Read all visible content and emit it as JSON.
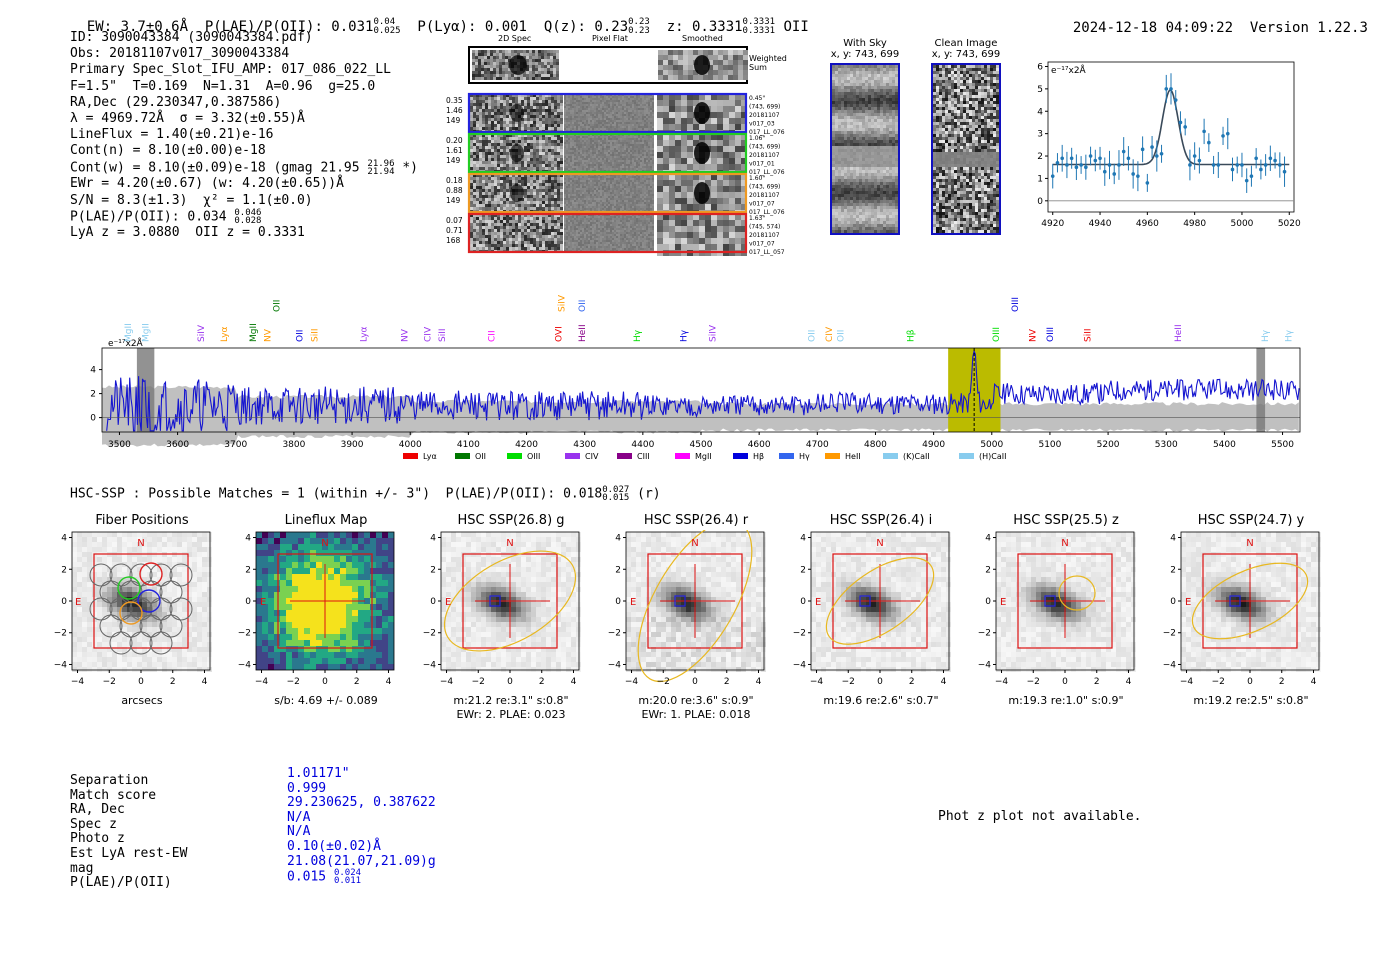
{
  "header": {
    "ew": "EW: 3.7±0.6Å",
    "plae_poii": "P(LAE)/P(OII): 0.031",
    "plae_poii_hi": "0.04",
    "plae_poii_lo": "0.025",
    "plya": "P(Lyα): 0.001",
    "qz": "Q(z): 0.23",
    "qz_hi": "0.23",
    "qz_lo": "0.23",
    "z": "z: 0.3331",
    "z_hi": "0.3331",
    "z_lo": "0.3331",
    "line": "OII",
    "timestamp": "2024-12-18 04:09:22",
    "version": "Version 1.22.3"
  },
  "info": {
    "id": "ID: 3090043384 (3090043384.pdf)",
    "obs": "Obs: 20181107v017_3090043384",
    "primary": "Primary Spec_Slot_IFU_AMP: 017_086_022_LL",
    "params": "F=1.5\"  T=0.169  N=1.31  A=0.96  g=25.0",
    "radec": "RA,Dec (29.230347,0.387586)",
    "lambda_sigma": "λ = 4969.72Å  σ = 3.32(±0.55)Å",
    "lineflux": "LineFlux = 1.40(±0.21)e-16",
    "contn": "Cont(n) = 8.10(±0.00)e-18",
    "contw": "Cont(w) = 8.10(±0.09)e-18 (gmag 21.95",
    "contw_hi": "21.96",
    "contw_lo": "21.94",
    "contw_end": "*)",
    "ewr": "EWr = 4.20(±0.67) (w: 4.20(±0.65))Å",
    "sn": "S/N = 8.3(±1.3)  χ² = 1.1(±0.0)",
    "plae": "P(LAE)/P(OII): 0.034",
    "plae_hi": "0.046",
    "plae_lo": "0.028",
    "lyaz": "LyA z = 3.0880  OII z = 0.3331"
  },
  "spec2d": {
    "col_headers": [
      "2D Spec",
      "Pixel Flat",
      "Smoothed"
    ],
    "weighted_sum": "Weighted Sum",
    "rows": [
      {
        "left": [
          "0.35",
          "1.46",
          "149"
        ],
        "right": [
          "0.45\"",
          "(743, 699)",
          "20181107",
          "v017_03",
          "017_LL_076"
        ],
        "color": "#2222dd"
      },
      {
        "left": [
          "0.20",
          "1.61",
          "149"
        ],
        "right": [
          "1.06\"",
          "(743, 699)",
          "20181107",
          "v017_01",
          "017_LL_076"
        ],
        "color": "#22cc22"
      },
      {
        "left": [
          "0.18",
          "0.88",
          "149"
        ],
        "right": [
          "1.60\"",
          "(743, 699)",
          "20181107",
          "v017_07",
          "017_LL_076"
        ],
        "color": "#ee9922"
      },
      {
        "left": [
          "0.07",
          "0.71",
          "168"
        ],
        "right": [
          "1.63\"",
          "(745, 574)",
          "20181107",
          "v017_07",
          "017_LL_057"
        ],
        "color": "#dd2222"
      }
    ]
  },
  "sky": {
    "with_sky_title": "With Sky",
    "with_sky_coords": "x, y: 743, 699",
    "clean_title": "Clean Image",
    "clean_coords": "x, y: 743, 699"
  },
  "zoom_plot": {
    "ylabel": "e⁻¹⁷x2Å",
    "xticks": [
      "4920",
      "4940",
      "4960",
      "4980",
      "5000",
      "5020"
    ],
    "yticks": [
      "0",
      "1",
      "2",
      "3",
      "4",
      "5",
      "6"
    ]
  },
  "chart_data": [
    {
      "type": "scatter",
      "title": "",
      "xlabel": "",
      "ylabel": "e⁻¹⁷x2Å",
      "xlim": [
        4918,
        5022
      ],
      "ylim": [
        -0.5,
        6.2
      ],
      "x": [
        4920,
        4922,
        4924,
        4926,
        4928,
        4930,
        4932,
        4934,
        4936,
        4938,
        4940,
        4942,
        4944,
        4946,
        4948,
        4950,
        4952,
        4954,
        4956,
        4958,
        4960,
        4962,
        4964,
        4966,
        4968,
        4970,
        4972,
        4974,
        4976,
        4978,
        4980,
        4982,
        4984,
        4986,
        4988,
        4990,
        4992,
        4994,
        4996,
        4998,
        5000,
        5002,
        5004,
        5006,
        5008,
        5010,
        5012,
        5014,
        5016,
        5018
      ],
      "y": [
        1.1,
        1.7,
        1.9,
        1.6,
        1.9,
        1.5,
        1.6,
        1.5,
        2.0,
        1.8,
        1.9,
        1.3,
        1.6,
        1.2,
        1.6,
        2.2,
        1.9,
        1.2,
        1.1,
        2.3,
        0.8,
        2.4,
        2.0,
        2.1,
        5.0,
        5.0,
        4.5,
        3.5,
        3.3,
        1.6,
        2.0,
        1.8,
        3.1,
        2.6,
        1.6,
        1.6,
        2.9,
        3.0,
        1.4,
        1.6,
        1.6,
        0.9,
        1.1,
        1.9,
        1.4,
        1.6,
        1.9,
        1.8,
        1.6,
        1.3
      ],
      "fit": {
        "continuum": 1.62,
        "peak": 4.95,
        "center": 4969.7,
        "sigma": 3.32
      }
    },
    {
      "type": "line",
      "title": "",
      "xlabel": "",
      "ylabel": "e⁻¹⁷x2Å",
      "xlim": [
        3470,
        5530
      ],
      "ylim": [
        -1.2,
        5.8
      ],
      "xticks": [
        3500,
        3600,
        3700,
        3800,
        3900,
        4000,
        4100,
        4200,
        4300,
        4400,
        4500,
        4600,
        4700,
        4800,
        4900,
        5000,
        5100,
        5200,
        5300,
        5400,
        5500
      ],
      "yticks": [
        0,
        2,
        4
      ],
      "highlight_range": [
        4925,
        5015
      ],
      "line_center": 4969.7,
      "masked": [
        [
          3530,
          3560
        ],
        [
          5455,
          5470
        ]
      ],
      "legend": [
        "Lyα",
        "OII",
        "OIII",
        "CIV",
        "CIII",
        "MgII",
        "Hβ",
        "Hγ",
        "HeII",
        "(K)CaII",
        "(H)CaII"
      ],
      "legend_colors": [
        "#ee0000",
        "#007700",
        "#00dd00",
        "#9933ee",
        "#880088",
        "#ff00ff",
        "#0000dd",
        "#3366ee",
        "#ff9900",
        "#88ccee",
        "#88ccee"
      ]
    }
  ],
  "line_labels": [
    {
      "name": "MgII",
      "w": 3515,
      "color": "#88ccee",
      "row": 2
    },
    {
      "name": "MgII",
      "w": 3545,
      "color": "#88ccee",
      "row": 2
    },
    {
      "name": "SiIV",
      "w": 3640,
      "color": "#9933ee",
      "row": 1
    },
    {
      "name": "Lyα",
      "w": 3680,
      "color": "#ff9900",
      "row": 1
    },
    {
      "name": "MgII",
      "w": 3730,
      "color": "#007700",
      "row": 1
    },
    {
      "name": "NV",
      "w": 3755,
      "color": "#ff9900",
      "row": 1
    },
    {
      "name": "OII",
      "w": 3770,
      "color": "#007700",
      "row": 0
    },
    {
      "name": "OII",
      "w": 3810,
      "color": "#0000dd",
      "row": 1
    },
    {
      "name": "SiII",
      "w": 3835,
      "color": "#ff9900",
      "row": 1
    },
    {
      "name": "Lyα",
      "w": 3920,
      "color": "#9933ee",
      "row": 1
    },
    {
      "name": "NV",
      "w": 3990,
      "color": "#9933ee",
      "row": 1
    },
    {
      "name": "CIV",
      "w": 4030,
      "color": "#9933ee",
      "row": 1
    },
    {
      "name": "SiII",
      "w": 4055,
      "color": "#9933ee",
      "row": 1
    },
    {
      "name": "CII",
      "w": 4140,
      "color": "#ff00ff",
      "row": 1
    },
    {
      "name": "SiIV",
      "w": 4260,
      "color": "#ff9900",
      "row": 0
    },
    {
      "name": "OVI",
      "w": 4255,
      "color": "#ee0000",
      "row": 1
    },
    {
      "name": "OII",
      "w": 4295,
      "color": "#3366ee",
      "row": 0
    },
    {
      "name": "HeII",
      "w": 4295,
      "color": "#880088",
      "row": 1
    },
    {
      "name": "Hγ",
      "w": 4390,
      "color": "#00dd00",
      "row": 1
    },
    {
      "name": "Hγ",
      "w": 4470,
      "color": "#0000dd",
      "row": 1
    },
    {
      "name": "SiIV",
      "w": 4520,
      "color": "#9933ee",
      "row": 1
    },
    {
      "name": "OII",
      "w": 4690,
      "color": "#88ccee",
      "row": 1
    },
    {
      "name": "CIV",
      "w": 4720,
      "color": "#ff9900",
      "row": 1
    },
    {
      "name": "OII",
      "w": 4740,
      "color": "#88ccee",
      "row": 1
    },
    {
      "name": "Hβ",
      "w": 4860,
      "color": "#00dd00",
      "row": 1
    },
    {
      "name": "OIII",
      "w": 5007,
      "color": "#00dd00",
      "row": 1
    },
    {
      "name": "OIII",
      "w": 5040,
      "color": "#0000dd",
      "row": 0
    },
    {
      "name": "NV",
      "w": 5070,
      "color": "#ee0000",
      "row": 1
    },
    {
      "name": "OIII",
      "w": 5100,
      "color": "#0000dd",
      "row": 1
    },
    {
      "name": "SiII",
      "w": 5165,
      "color": "#ee0000",
      "row": 1
    },
    {
      "name": "HeII",
      "w": 5320,
      "color": "#9933ee",
      "row": 1
    },
    {
      "name": "Hγ",
      "w": 5470,
      "color": "#88ccee",
      "row": 2
    },
    {
      "name": "Hγ",
      "w": 5510,
      "color": "#88ccee",
      "row": 2
    }
  ],
  "hsc": {
    "summary": "HSC-SSP : Possible Matches = 1 (within +/- 3\")  P(LAE)/P(OII): 0.018",
    "summary_hi": "0.027",
    "summary_lo": "0.015",
    "summary_end": "(r)",
    "tiles": [
      {
        "title": "Fiber Positions",
        "cap1": "arcsecs",
        "cap2": "",
        "kind": "fiber"
      },
      {
        "title": "Lineflux Map",
        "cap1": "s/b: 4.69 +/- 0.089",
        "cap2": "",
        "kind": "flux"
      },
      {
        "title": "HSC SSP(26.8) g",
        "cap1": "m:21.2  re:3.1\"  s:0.8\"",
        "cap2": "EWr: 2. PLAE: 0.023",
        "kind": "g"
      },
      {
        "title": "HSC SSP(26.4) r",
        "cap1": "m:20.0  re:3.6\"  s:0.9\"",
        "cap2": "EWr: 1. PLAE: 0.018",
        "kind": "r"
      },
      {
        "title": "HSC SSP(26.4) i",
        "cap1": "m:19.6  re:2.6\"  s:0.7\"",
        "cap2": "",
        "kind": "i"
      },
      {
        "title": "HSC SSP(25.5) z",
        "cap1": "m:19.3  re:1.0\"  s:0.9\"",
        "cap2": "",
        "kind": "z"
      },
      {
        "title": "HSC SSP(24.7) y",
        "cap1": "m:19.2  re:2.5\"  s:0.8\"",
        "cap2": "",
        "kind": "y"
      }
    ],
    "axis_ticks": [
      "−4",
      "−2",
      "0",
      "2",
      "4"
    ],
    "north": "N",
    "east": "E"
  },
  "match": {
    "labels": [
      "Separation",
      "Match score",
      "RA, Dec",
      "Spec z",
      "Photo z",
      "Est LyA rest-EW",
      "mag",
      "P(LAE)/P(OII)"
    ],
    "values": [
      "1.01171\"",
      "0.999",
      "29.230625, 0.387622",
      "N/A",
      "N/A",
      "0.10(±0.02)Å",
      "21.08(21.07,21.09)g",
      "0.015"
    ],
    "plae_hi": "0.024",
    "plae_lo": "0.011",
    "photz_note": "Phot z plot not available."
  }
}
